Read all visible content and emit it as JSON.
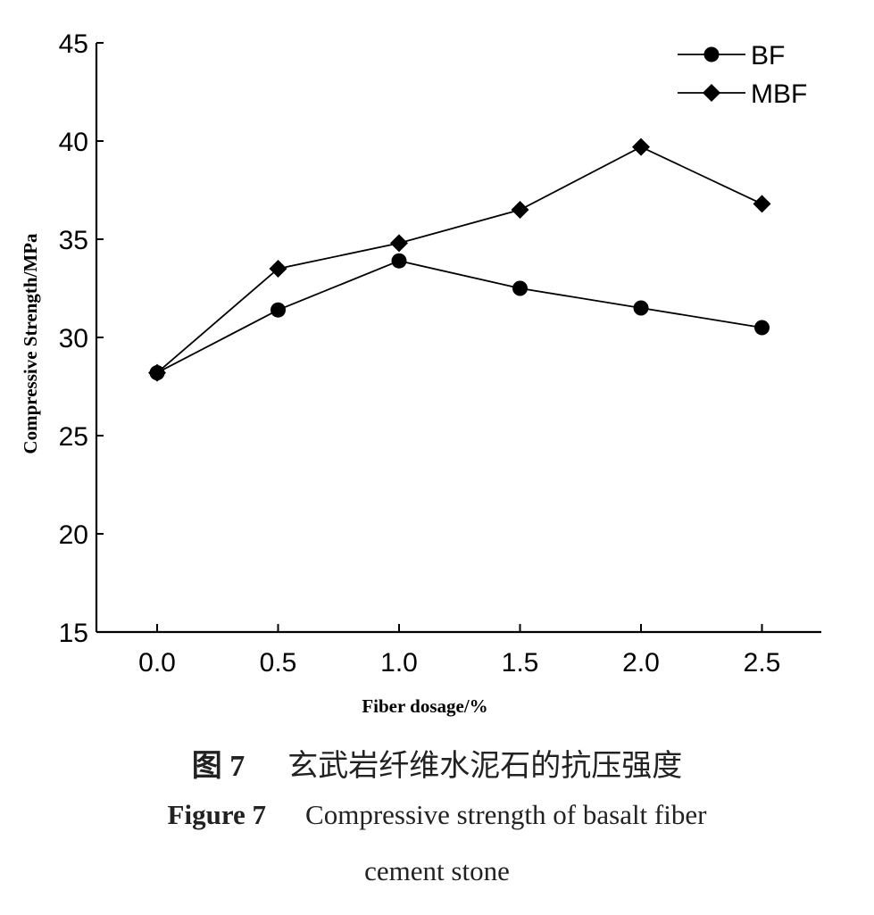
{
  "chart_data": {
    "type": "line",
    "xlabel": "Fiber dosage/%",
    "ylabel": "Compressive Strength/MPa",
    "x": [
      0.0,
      0.5,
      1.0,
      1.5,
      2.0,
      2.5
    ],
    "x_tick_labels": [
      "0.0",
      "0.5",
      "1.0",
      "1.5",
      "2.0",
      "2.5"
    ],
    "y_tick_labels": [
      "15",
      "20",
      "25",
      "30",
      "35",
      "40",
      "45"
    ],
    "ylim": [
      15,
      45
    ],
    "grid": false,
    "legend_position": "top-right",
    "series": [
      {
        "name": "BF",
        "marker": "circle",
        "values": [
          28.2,
          31.4,
          33.9,
          32.5,
          31.5,
          30.5
        ]
      },
      {
        "name": "MBF",
        "marker": "diamond",
        "values": [
          28.2,
          33.5,
          34.8,
          36.5,
          39.7,
          36.8
        ]
      }
    ]
  },
  "caption": {
    "cn_number": "图 7",
    "cn_title": "玄武岩纤维水泥石的抗压强度",
    "en_number": "Figure 7",
    "en_title_line1": "Compressive strength of basalt fiber",
    "en_title_line2": "cement stone"
  }
}
